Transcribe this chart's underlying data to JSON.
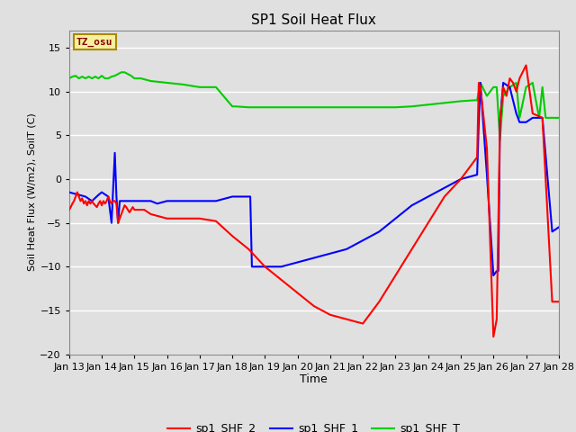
{
  "title": "SP1 Soil Heat Flux",
  "xlabel": "Time",
  "ylabel": "Soil Heat Flux (W/m2), SoilT (C)",
  "ylim": [
    -20,
    17
  ],
  "xlim": [
    0,
    15
  ],
  "tz_label": "TZ_osu",
  "background_color": "#e0e0e0",
  "plot_bg_color": "#e0e0e0",
  "grid_color": "white",
  "xtick_labels": [
    "Jan 13",
    "Jan 14",
    "Jan 15",
    "Jan 16",
    "Jan 17",
    "Jan 18",
    "Jan 19",
    "Jan 20",
    "Jan 21",
    "Jan 22",
    "Jan 23",
    "Jan 24",
    "Jan 25",
    "Jan 26",
    "Jan 27",
    "Jan 28"
  ],
  "sp1_SHF_2": {
    "color": "#ff0000",
    "x": [
      0.0,
      0.05,
      0.1,
      0.15,
      0.2,
      0.25,
      0.3,
      0.35,
      0.4,
      0.45,
      0.5,
      0.55,
      0.6,
      0.65,
      0.7,
      0.75,
      0.8,
      0.85,
      0.9,
      0.95,
      1.0,
      1.05,
      1.1,
      1.15,
      1.2,
      1.25,
      1.3,
      1.35,
      1.4,
      1.45,
      1.5,
      1.55,
      1.6,
      1.65,
      1.7,
      1.75,
      1.8,
      1.85,
      1.9,
      1.95,
      2.0,
      2.1,
      2.2,
      2.3,
      2.5,
      2.7,
      3.0,
      3.5,
      4.0,
      4.5,
      5.0,
      5.5,
      6.0,
      6.5,
      7.0,
      7.5,
      8.0,
      8.5,
      9.0,
      9.5,
      10.0,
      10.5,
      11.0,
      11.5,
      12.0,
      12.5,
      12.55,
      12.6,
      12.8,
      13.0,
      13.1,
      13.15,
      13.2,
      13.3,
      13.4,
      13.5,
      13.6,
      13.7,
      13.8,
      14.0,
      14.2,
      14.5,
      14.8,
      15.0
    ],
    "y": [
      -3.5,
      -3.2,
      -2.8,
      -2.5,
      -2.0,
      -1.5,
      -2.0,
      -2.5,
      -2.2,
      -2.8,
      -2.5,
      -3.0,
      -2.5,
      -2.8,
      -2.5,
      -2.8,
      -3.0,
      -3.2,
      -2.8,
      -2.5,
      -3.0,
      -2.5,
      -2.8,
      -2.5,
      -2.0,
      -2.5,
      -2.8,
      -2.5,
      -2.5,
      -2.8,
      -5.0,
      -4.5,
      -4.0,
      -3.5,
      -3.0,
      -3.2,
      -3.5,
      -3.8,
      -3.5,
      -3.2,
      -3.5,
      -3.5,
      -3.5,
      -3.5,
      -4.0,
      -4.2,
      -4.5,
      -4.5,
      -4.5,
      -4.8,
      -6.5,
      -8.0,
      -10.0,
      -11.5,
      -13.0,
      -14.5,
      -15.5,
      -16.0,
      -16.5,
      -14.0,
      -11.0,
      -8.0,
      -5.0,
      -2.0,
      0.0,
      2.5,
      11.0,
      10.5,
      3.5,
      -18.0,
      -16.0,
      -5.0,
      6.5,
      10.5,
      9.5,
      11.5,
      11.0,
      10.0,
      11.5,
      13.0,
      7.5,
      7.0,
      -14.0,
      -14.0
    ]
  },
  "sp1_SHF_1": {
    "color": "#0000ff",
    "x": [
      0.0,
      0.3,
      0.5,
      0.7,
      0.9,
      1.0,
      1.2,
      1.3,
      1.4,
      1.45,
      1.5,
      1.55,
      1.6,
      1.7,
      1.8,
      1.9,
      2.0,
      2.2,
      2.5,
      2.7,
      3.0,
      3.5,
      4.0,
      4.5,
      5.0,
      5.5,
      5.55,
      5.6,
      6.0,
      6.5,
      7.0,
      7.5,
      8.0,
      8.5,
      9.0,
      9.5,
      10.0,
      10.5,
      11.0,
      11.5,
      12.0,
      12.5,
      12.55,
      12.6,
      12.8,
      13.0,
      13.1,
      13.15,
      13.2,
      13.3,
      13.5,
      13.7,
      13.8,
      14.0,
      14.2,
      14.5,
      14.8,
      15.0
    ],
    "y": [
      -1.5,
      -1.8,
      -2.0,
      -2.5,
      -1.8,
      -1.5,
      -2.0,
      -5.0,
      3.0,
      -2.0,
      -5.0,
      -2.5,
      -2.5,
      -2.5,
      -2.5,
      -2.5,
      -2.5,
      -2.5,
      -2.5,
      -2.8,
      -2.5,
      -2.5,
      -2.5,
      -2.5,
      -2.0,
      -2.0,
      -2.0,
      -10.0,
      -10.0,
      -10.0,
      -9.5,
      -9.0,
      -8.5,
      -8.0,
      -7.0,
      -6.0,
      -4.5,
      -3.0,
      -2.0,
      -1.0,
      0.0,
      0.5,
      6.5,
      11.0,
      0.5,
      -11.0,
      -10.5,
      -10.5,
      6.5,
      11.0,
      10.5,
      7.5,
      6.5,
      6.5,
      7.0,
      7.0,
      -6.0,
      -5.5
    ]
  },
  "sp1_SHF_T": {
    "color": "#00cc00",
    "x": [
      0.0,
      0.1,
      0.2,
      0.3,
      0.4,
      0.5,
      0.6,
      0.7,
      0.8,
      0.9,
      1.0,
      1.1,
      1.2,
      1.3,
      1.4,
      1.5,
      1.6,
      1.7,
      1.8,
      1.9,
      2.0,
      2.2,
      2.5,
      3.0,
      3.5,
      4.0,
      4.5,
      5.0,
      5.1,
      5.5,
      6.0,
      6.5,
      7.0,
      7.5,
      8.0,
      8.5,
      9.0,
      9.5,
      10.0,
      10.5,
      11.0,
      11.5,
      12.0,
      12.4,
      12.5,
      12.6,
      12.8,
      13.0,
      13.1,
      13.2,
      13.3,
      13.5,
      13.7,
      13.8,
      14.0,
      14.2,
      14.4,
      14.5,
      14.6,
      14.8,
      15.0
    ],
    "y": [
      11.5,
      11.7,
      11.8,
      11.5,
      11.7,
      11.5,
      11.7,
      11.5,
      11.7,
      11.5,
      11.8,
      11.5,
      11.5,
      11.7,
      11.8,
      12.0,
      12.2,
      12.2,
      12.0,
      11.8,
      11.5,
      11.5,
      11.2,
      11.0,
      10.8,
      10.5,
      10.5,
      8.3,
      8.3,
      8.2,
      8.2,
      8.2,
      8.2,
      8.2,
      8.2,
      8.2,
      8.2,
      8.2,
      8.2,
      8.3,
      8.5,
      8.7,
      8.9,
      9.0,
      9.0,
      11.0,
      9.5,
      10.5,
      10.5,
      4.5,
      9.5,
      10.5,
      11.0,
      7.0,
      10.5,
      11.0,
      7.0,
      10.5,
      7.0,
      7.0,
      7.0
    ]
  }
}
